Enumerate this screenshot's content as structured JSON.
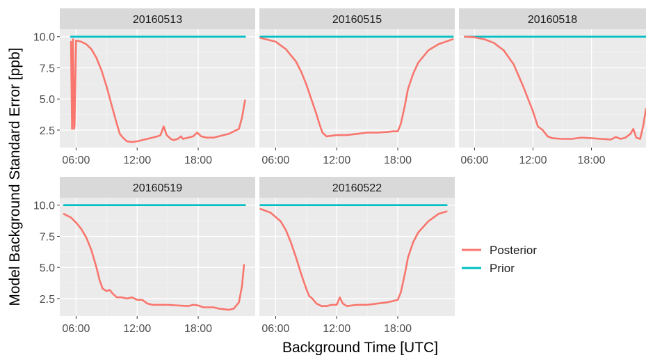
{
  "chart_data": {
    "type": "line",
    "xlabel": "Background Time [UTC]",
    "ylabel": "Model Background Standard Error [ppb]",
    "x_ticks": [
      "06:00",
      "12:00",
      "18:00"
    ],
    "x_range_hours": [
      4.4,
      23.6
    ],
    "y_ticks": [
      "2.5",
      "5.0",
      "7.5",
      "10.0"
    ],
    "y_range": [
      1.1,
      10.6
    ],
    "grid": true,
    "legend_position": "right",
    "legend": [
      "Posterior",
      "Prior"
    ],
    "colors": {
      "Posterior": "#F8766D",
      "Prior": "#00BFC4",
      "panel_bg": "#EBEBEB",
      "strip_bg": "#D9D9D9"
    },
    "panels": [
      {
        "date": "20160513",
        "series": [
          {
            "name": "Prior",
            "points": [
              [
                5.5,
                10.0
              ],
              [
                22.6,
                10.0
              ]
            ]
          },
          {
            "name": "Posterior",
            "points": [
              [
                5.5,
                9.6
              ],
              [
                5.6,
                2.6
              ],
              [
                5.7,
                9.8
              ],
              [
                5.8,
                2.6
              ],
              [
                5.85,
                2.8
              ],
              [
                6.0,
                9.7
              ],
              [
                6.5,
                9.6
              ],
              [
                7.0,
                9.4
              ],
              [
                7.5,
                9.0
              ],
              [
                8.0,
                8.3
              ],
              [
                8.5,
                7.3
              ],
              [
                9.0,
                6.0
              ],
              [
                9.5,
                4.5
              ],
              [
                10.0,
                3.0
              ],
              [
                10.3,
                2.2
              ],
              [
                10.6,
                1.9
              ],
              [
                11.0,
                1.6
              ],
              [
                11.5,
                1.55
              ],
              [
                12.0,
                1.6
              ],
              [
                12.5,
                1.7
              ],
              [
                13.0,
                1.8
              ],
              [
                13.5,
                1.9
              ],
              [
                14.0,
                2.0
              ],
              [
                14.3,
                2.1
              ],
              [
                14.6,
                2.8
              ],
              [
                14.9,
                2.1
              ],
              [
                15.3,
                1.8
              ],
              [
                15.6,
                1.7
              ],
              [
                16.0,
                1.8
              ],
              [
                16.3,
                2.0
              ],
              [
                16.5,
                1.8
              ],
              [
                17.0,
                1.9
              ],
              [
                17.5,
                2.0
              ],
              [
                17.9,
                2.3
              ],
              [
                18.3,
                2.0
              ],
              [
                18.8,
                1.9
              ],
              [
                19.5,
                1.9
              ],
              [
                20.5,
                2.1
              ],
              [
                21.0,
                2.2
              ],
              [
                21.5,
                2.4
              ],
              [
                22.0,
                2.6
              ],
              [
                22.3,
                3.5
              ],
              [
                22.6,
                4.9
              ]
            ]
          }
        ]
      },
      {
        "date": "20160515",
        "series": [
          {
            "name": "Prior",
            "points": [
              [
                4.5,
                10.0
              ],
              [
                23.4,
                10.0
              ]
            ]
          },
          {
            "name": "Posterior",
            "points": [
              [
                4.5,
                9.9
              ],
              [
                5.0,
                9.8
              ],
              [
                6.0,
                9.6
              ],
              [
                7.0,
                9.0
              ],
              [
                8.0,
                8.0
              ],
              [
                8.5,
                7.2
              ],
              [
                9.0,
                6.2
              ],
              [
                9.5,
                5.0
              ],
              [
                10.0,
                3.8
              ],
              [
                10.3,
                3.0
              ],
              [
                10.6,
                2.3
              ],
              [
                11.0,
                2.0
              ],
              [
                12.0,
                2.1
              ],
              [
                13.0,
                2.1
              ],
              [
                14.0,
                2.2
              ],
              [
                15.0,
                2.3
              ],
              [
                16.0,
                2.3
              ],
              [
                17.0,
                2.35
              ],
              [
                17.5,
                2.4
              ],
              [
                18.0,
                2.4
              ],
              [
                18.3,
                3.0
              ],
              [
                18.7,
                4.5
              ],
              [
                19.0,
                5.8
              ],
              [
                19.5,
                7.0
              ],
              [
                20.0,
                7.9
              ],
              [
                21.0,
                8.9
              ],
              [
                22.0,
                9.4
              ],
              [
                23.4,
                9.8
              ]
            ]
          }
        ]
      },
      {
        "date": "20160518",
        "series": [
          {
            "name": "Prior",
            "points": [
              [
                5.0,
                10.0
              ],
              [
                23.6,
                10.0
              ]
            ]
          },
          {
            "name": "Posterior",
            "points": [
              [
                5.0,
                10.0
              ],
              [
                6.0,
                9.95
              ],
              [
                7.0,
                9.8
              ],
              [
                8.0,
                9.5
              ],
              [
                9.0,
                8.9
              ],
              [
                10.0,
                7.8
              ],
              [
                11.0,
                6.0
              ],
              [
                11.5,
                5.0
              ],
              [
                12.0,
                4.0
              ],
              [
                12.5,
                2.8
              ],
              [
                13.0,
                2.5
              ],
              [
                13.5,
                2.0
              ],
              [
                14.0,
                1.85
              ],
              [
                15.0,
                1.8
              ],
              [
                16.0,
                1.8
              ],
              [
                17.0,
                1.9
              ],
              [
                18.0,
                1.85
              ],
              [
                19.0,
                1.8
              ],
              [
                20.0,
                1.75
              ],
              [
                20.5,
                1.95
              ],
              [
                21.0,
                1.8
              ],
              [
                21.5,
                1.9
              ],
              [
                22.0,
                2.2
              ],
              [
                22.3,
                2.6
              ],
              [
                22.6,
                1.9
              ],
              [
                23.0,
                1.8
              ],
              [
                23.3,
                2.8
              ],
              [
                23.6,
                4.2
              ]
            ]
          }
        ]
      },
      {
        "date": "20160519",
        "series": [
          {
            "name": "Prior",
            "points": [
              [
                4.8,
                10.0
              ],
              [
                22.6,
                10.0
              ]
            ]
          },
          {
            "name": "Posterior",
            "points": [
              [
                4.8,
                9.3
              ],
              [
                5.5,
                9.0
              ],
              [
                6.0,
                8.6
              ],
              [
                6.5,
                8.1
              ],
              [
                7.0,
                7.4
              ],
              [
                7.5,
                6.4
              ],
              [
                8.0,
                5.0
              ],
              [
                8.3,
                4.0
              ],
              [
                8.6,
                3.3
              ],
              [
                9.0,
                3.1
              ],
              [
                9.3,
                3.2
              ],
              [
                9.6,
                2.9
              ],
              [
                10.0,
                2.6
              ],
              [
                10.5,
                2.6
              ],
              [
                11.0,
                2.5
              ],
              [
                11.5,
                2.6
              ],
              [
                12.0,
                2.4
              ],
              [
                12.5,
                2.4
              ],
              [
                13.0,
                2.1
              ],
              [
                13.5,
                2.0
              ],
              [
                14.0,
                2.0
              ],
              [
                15.0,
                2.0
              ],
              [
                16.0,
                1.95
              ],
              [
                17.0,
                1.9
              ],
              [
                17.5,
                2.0
              ],
              [
                18.0,
                1.95
              ],
              [
                18.5,
                1.8
              ],
              [
                19.0,
                1.8
              ],
              [
                19.5,
                1.8
              ],
              [
                20.0,
                1.7
              ],
              [
                20.5,
                1.65
              ],
              [
                21.0,
                1.6
              ],
              [
                21.5,
                1.7
              ],
              [
                22.0,
                2.2
              ],
              [
                22.3,
                3.5
              ],
              [
                22.5,
                5.2
              ]
            ]
          }
        ]
      },
      {
        "date": "20160522",
        "series": [
          {
            "name": "Prior",
            "points": [
              [
                4.5,
                10.0
              ],
              [
                22.8,
                10.0
              ]
            ]
          },
          {
            "name": "Posterior",
            "points": [
              [
                4.5,
                9.7
              ],
              [
                5.5,
                9.4
              ],
              [
                6.5,
                8.7
              ],
              [
                7.0,
                8.0
              ],
              [
                7.5,
                7.0
              ],
              [
                8.0,
                5.8
              ],
              [
                8.5,
                4.5
              ],
              [
                9.0,
                3.3
              ],
              [
                9.3,
                2.7
              ],
              [
                9.6,
                2.5
              ],
              [
                10.0,
                2.1
              ],
              [
                10.5,
                1.9
              ],
              [
                11.0,
                1.9
              ],
              [
                11.5,
                2.0
              ],
              [
                12.0,
                2.0
              ],
              [
                12.3,
                2.6
              ],
              [
                12.6,
                2.1
              ],
              [
                13.0,
                1.9
              ],
              [
                14.0,
                2.0
              ],
              [
                15.0,
                2.0
              ],
              [
                16.0,
                2.1
              ],
              [
                17.0,
                2.2
              ],
              [
                17.5,
                2.3
              ],
              [
                18.0,
                2.4
              ],
              [
                18.3,
                3.0
              ],
              [
                18.7,
                4.5
              ],
              [
                19.0,
                5.8
              ],
              [
                19.5,
                7.0
              ],
              [
                20.0,
                7.8
              ],
              [
                21.0,
                8.7
              ],
              [
                22.0,
                9.3
              ],
              [
                22.8,
                9.5
              ]
            ]
          }
        ]
      }
    ]
  }
}
